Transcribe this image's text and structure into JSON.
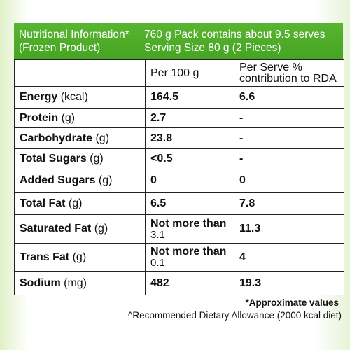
{
  "header": {
    "title_line1": "Nutritional Information*",
    "title_line2": "(Frozen Product)",
    "pack_line": "760 g Pack contains about 9.5 serves",
    "serving_line": "Serving Size  80 g (2 Pieces)"
  },
  "columns": {
    "per_100g": "Per 100 g",
    "per_serve_line1": "Per Serve %",
    "per_serve_line2": "contribution to RDA"
  },
  "rows": [
    {
      "name": "Energy",
      "unit": " (kcal)",
      "per100": "164.5",
      "per100_sub": "",
      "rda": "6.6"
    },
    {
      "name": "Protein",
      "unit": " (g)",
      "per100": "2.7",
      "per100_sub": "",
      "rda": "-"
    },
    {
      "name": "Carbohydrate",
      "unit": " (g)",
      "per100": "23.8",
      "per100_sub": "",
      "rda": "-"
    },
    {
      "name": "Total Sugars",
      "unit": " (g)",
      "per100": "<0.5",
      "per100_sub": "",
      "rda": "-"
    },
    {
      "name": "Added Sugars",
      "unit": " (g)",
      "per100": "0",
      "per100_sub": "",
      "rda": "0"
    },
    {
      "name": "Total Fat",
      "unit": " (g)",
      "per100": "6.5",
      "per100_sub": "",
      "rda": "7.8"
    },
    {
      "name": "Saturated Fat",
      "unit": " (g)",
      "per100": "Not more than",
      "per100_sub": "3.1",
      "rda": "11.3"
    },
    {
      "name": "Trans Fat",
      "unit": " (g)",
      "per100": "Not more than",
      "per100_sub": "0.1",
      "rda": "4"
    },
    {
      "name": "Sodium",
      "unit": " (mg)",
      "per100": "482",
      "per100_sub": "",
      "rda": "19.3"
    }
  ],
  "footer": {
    "approx": "*Approximate values",
    "rda_note": "^Recommended Dietary Allowance (2000 kcal diet)"
  },
  "colors": {
    "header_green": "#4caf2a",
    "panel_tint": "#dff0c8"
  }
}
